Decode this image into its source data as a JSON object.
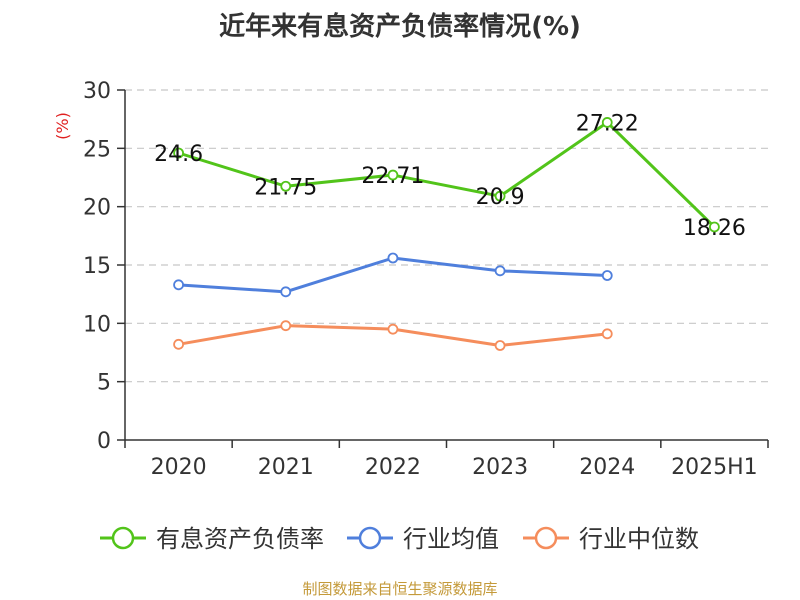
{
  "chart_data": {
    "type": "line",
    "title": "近年来有息资产负债率情况(%)",
    "ylabel": "(%)",
    "xlabel": "",
    "categories": [
      "2020",
      "2021",
      "2022",
      "2023",
      "2024",
      "2025H1"
    ],
    "ylim": [
      0,
      30
    ],
    "yticks": [
      0,
      5,
      10,
      15,
      20,
      25,
      30
    ],
    "grid": true,
    "legend_position": "bottom",
    "series": [
      {
        "name": "有息资产负债率",
        "color": "#52c41a",
        "values": [
          24.6,
          21.75,
          22.71,
          20.9,
          27.22,
          18.26
        ],
        "labels": [
          "24.6",
          "21.75",
          "22.71",
          "20.9",
          "27.22",
          "18.26"
        ]
      },
      {
        "name": "行业均值",
        "color": "#4f7fdc",
        "values": [
          13.3,
          12.7,
          15.6,
          14.5,
          14.1,
          null
        ]
      },
      {
        "name": "行业中位数",
        "color": "#f58d5c",
        "values": [
          8.2,
          9.8,
          9.5,
          8.1,
          9.1,
          null
        ]
      }
    ]
  },
  "source_note": "制图数据来自恒生聚源数据库"
}
